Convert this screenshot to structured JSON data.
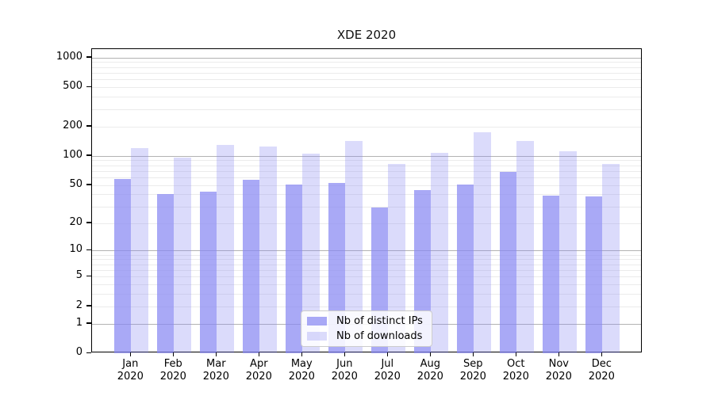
{
  "chart_data": {
    "type": "bar",
    "title": "XDE 2020",
    "categories": [
      "Jan 2020",
      "Feb 2020",
      "Mar 2020",
      "Apr 2020",
      "May 2020",
      "Jun 2020",
      "Jul 2020",
      "Aug 2020",
      "Sep 2020",
      "Oct 2020",
      "Nov 2020",
      "Dec 2020"
    ],
    "series": [
      {
        "name": "Nb of distinct IPs",
        "color": "rgba(136,136,243,0.72)",
        "solid_hex": "#a9a9f6",
        "values": [
          58,
          40,
          43,
          57,
          51,
          53,
          29,
          44,
          51,
          68,
          39,
          38
        ]
      },
      {
        "name": "Nb of downloads",
        "color": "rgba(136,136,243,0.30)",
        "solid_hex": "#dbdbfa",
        "values": [
          119,
          95,
          128,
          125,
          105,
          141,
          83,
          107,
          175,
          143,
          112,
          83
        ]
      }
    ],
    "xlabel": "",
    "ylabel": "",
    "yscale": "log1p",
    "ylim": [
      0,
      1220
    ],
    "yticks": [
      0,
      1,
      2,
      5,
      10,
      20,
      50,
      100,
      200,
      500,
      1000
    ],
    "grid": {
      "on": true,
      "major_at": [
        1,
        10,
        100,
        1000
      ],
      "major_color": "#b3b3b3",
      "minor_color": "#ebebeb"
    },
    "legend": {
      "position": "bottom-center-inside"
    }
  }
}
